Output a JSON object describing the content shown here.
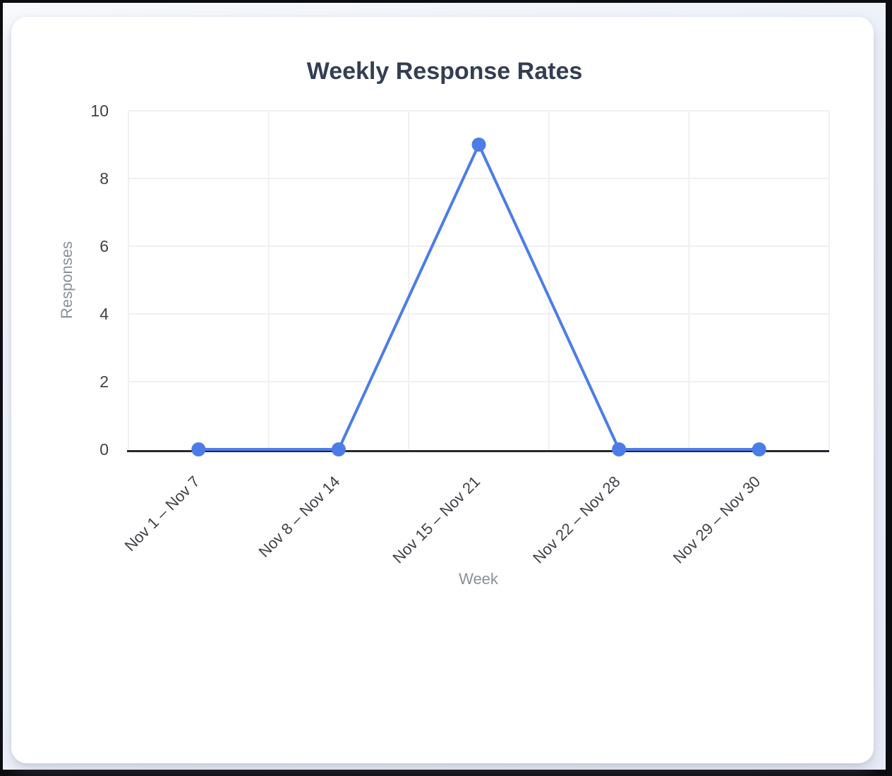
{
  "window": {
    "frame_color": "#0c0d10",
    "background_color": "#eef2f9",
    "card_color": "#ffffff"
  },
  "chart_data": {
    "type": "line",
    "title": "Weekly Response Rates",
    "xlabel": "Week",
    "ylabel": "Responses",
    "categories": [
      "Nov 1 – Nov 7",
      "Nov 8 – Nov 14",
      "Nov 15 – Nov 21",
      "Nov 22 – Nov 28",
      "Nov 29 – Nov 30"
    ],
    "values": [
      0,
      0,
      9,
      0,
      0
    ],
    "ylim": [
      0,
      10
    ],
    "yticks": [
      0,
      2,
      4,
      6,
      8,
      10
    ],
    "grid": "on",
    "legend": "none",
    "x_label_rotation_deg": 45,
    "colors": {
      "line": "#4c7ce8",
      "point": "#4c7ce8",
      "axis_line": "#26282e",
      "grid_line": "#eef0f4",
      "title_text": "#343e52",
      "tick_text": "#3f4246",
      "axis_title_text": "#8b9097"
    }
  }
}
